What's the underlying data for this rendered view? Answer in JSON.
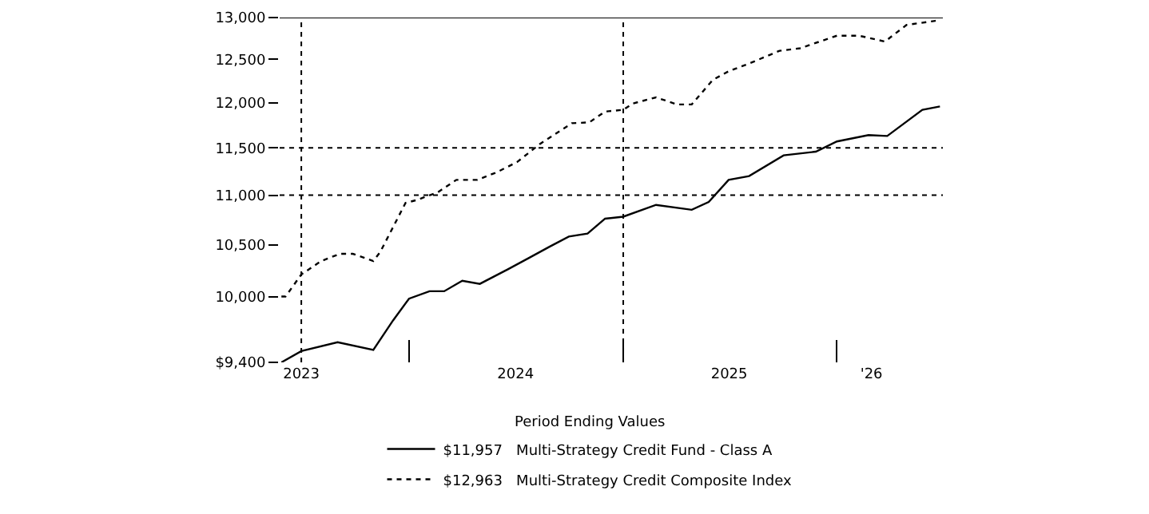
{
  "chart_data": {
    "type": "line",
    "legend_title": "Period Ending Values",
    "legend": "bottom",
    "log": true,
    "marker": "none",
    "xlim": [
      "2023-05-25",
      "2026-07-01"
    ],
    "xticks": [
      {
        "value": "2023-07-01",
        "label": "2023"
      },
      {
        "value": "2024-01-01",
        "label": null
      },
      {
        "value": "2024-07-01",
        "label": "2024"
      },
      {
        "value": "2025-01-01",
        "label": null
      },
      {
        "value": "2025-07-01",
        "label": "2025"
      },
      {
        "value": "2026-01-01",
        "label": null
      },
      {
        "value": "2026-03-01",
        "label": "'26"
      }
    ],
    "ylim": [
      9400,
      13000
    ],
    "yticks": [
      {
        "value": 9400,
        "label": "$9,400"
      },
      {
        "value": 10000,
        "label": "10,000"
      },
      {
        "value": 10500,
        "label": "10,500"
      },
      {
        "value": 11000,
        "label": "11,000"
      },
      {
        "value": 11500,
        "label": "11,500"
      },
      {
        "value": 12000,
        "label": "12,000"
      },
      {
        "value": 12500,
        "label": "12,500"
      },
      {
        "value": 13000,
        "label": "13,000"
      }
    ],
    "ref_lines": [
      {
        "axis": "x",
        "value": "2023-07-01",
        "label": null,
        "color": "#000000",
        "line_style": "dotted"
      },
      {
        "axis": "x",
        "value": "2025-01-01",
        "label": null,
        "color": "#000000",
        "line_style": "dotted"
      },
      {
        "axis": "y",
        "value": 11000,
        "label": null,
        "color": "#000000",
        "line_style": "dotted"
      },
      {
        "axis": "y",
        "value": 11500,
        "label": null,
        "color": "#000000",
        "line_style": "dotted"
      },
      {
        "axis": "y",
        "value": 13000,
        "label": null,
        "color": "#000000",
        "line_style": "solid"
      }
    ],
    "series": [
      {
        "name": "$11,957   Multi-Strategy Credit Fund - Class A",
        "color": "#000000",
        "line_style": "solid",
        "x": [
          "2023-05-28",
          "2023-07-01",
          "2023-09-01",
          "2023-11-01",
          "2023-12-05",
          "2024-01-01",
          "2024-02-05",
          "2024-03-01",
          "2024-04-01",
          "2024-05-01",
          "2024-06-18",
          "2024-07-24",
          "2024-08-28",
          "2024-09-30",
          "2024-11-01",
          "2024-12-01",
          "2025-01-01",
          "2025-02-26",
          "2025-04-28",
          "2025-05-27",
          "2025-06-30",
          "2025-08-04",
          "2025-10-02",
          "2025-11-26",
          "2026-01-01",
          "2026-02-24",
          "2026-03-28",
          "2026-05-27",
          "2026-06-26"
        ],
        "values": [
          9400,
          9500,
          9580,
          9510,
          9780,
          9980,
          10050,
          10050,
          10150,
          10120,
          10260,
          10370,
          10480,
          10580,
          10610,
          10760,
          10780,
          10900,
          10850,
          10930,
          11160,
          11200,
          11420,
          11460,
          11570,
          11640,
          11630,
          11920,
          11957
        ]
      },
      {
        "name": "$12,963   Multi-Strategy Credit Composite Index",
        "color": "#000000",
        "line_style": "dotted",
        "x": [
          "2023-05-28",
          "2023-06-04",
          "2023-07-01",
          "2023-08-04",
          "2023-09-05",
          "2023-09-27",
          "2023-11-01",
          "2023-11-13",
          "2023-12-26",
          "2024-01-14",
          "2024-02-19",
          "2024-03-22",
          "2024-04-27",
          "2024-05-30",
          "2024-07-04",
          "2024-08-11",
          "2024-10-05",
          "2024-11-04",
          "2024-12-01",
          "2025-01-01",
          "2025-01-17",
          "2025-02-26",
          "2025-04-03",
          "2025-04-28",
          "2025-06-03",
          "2025-06-30",
          "2025-08-04",
          "2025-09-25",
          "2025-10-30",
          "2026-01-01",
          "2026-02-08",
          "2026-03-24",
          "2026-04-30",
          "2026-06-18",
          "2026-06-27"
        ],
        "values": [
          10000,
          10000,
          10210,
          10340,
          10410,
          10410,
          10340,
          10430,
          10920,
          10950,
          11030,
          11160,
          11160,
          11240,
          11350,
          11540,
          11770,
          11780,
          11900,
          11920,
          11990,
          12060,
          11980,
          11980,
          12260,
          12360,
          12450,
          12600,
          12630,
          12780,
          12780,
          12710,
          12910,
          12960,
          12963
        ]
      }
    ]
  }
}
